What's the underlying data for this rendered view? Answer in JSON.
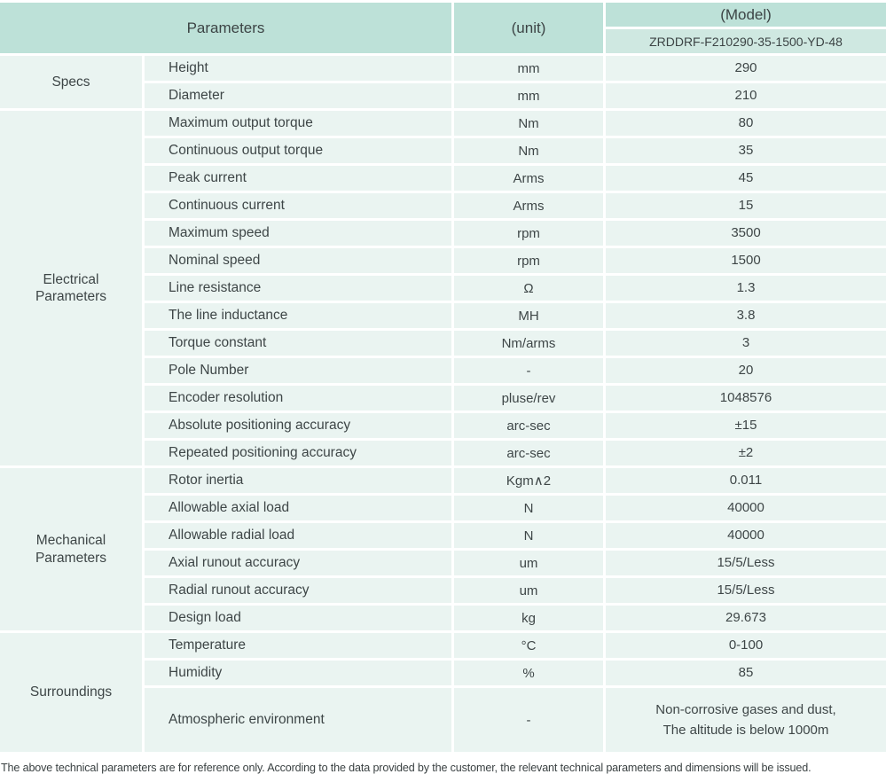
{
  "table": {
    "header": {
      "parameters_label": "Parameters",
      "unit_label": "(unit)",
      "model_label": "(Model)",
      "model_value": "ZRDDRF-F210290-35-1500-YD-48"
    },
    "sections": [
      {
        "name": "Specs",
        "rows": [
          {
            "param": "Height",
            "unit": "mm",
            "value": "290"
          },
          {
            "param": "Diameter",
            "unit": "mm",
            "value": "210"
          }
        ]
      },
      {
        "name": "Electrical\nParameters",
        "rows": [
          {
            "param": "Maximum output torque",
            "unit": "Nm",
            "value": "80"
          },
          {
            "param": "Continuous output torque",
            "unit": "Nm",
            "value": "35"
          },
          {
            "param": "Peak current",
            "unit": "Arms",
            "value": "45"
          },
          {
            "param": "Continuous current",
            "unit": "Arms",
            "value": "15"
          },
          {
            "param": "Maximum speed",
            "unit": "rpm",
            "value": "3500"
          },
          {
            "param": "Nominal speed",
            "unit": "rpm",
            "value": "1500"
          },
          {
            "param": "Line resistance",
            "unit": "Ω",
            "value": "1.3"
          },
          {
            "param": "The line inductance",
            "unit": "MH",
            "value": "3.8"
          },
          {
            "param": "Torque constant",
            "unit": "Nm/arms",
            "value": "3"
          },
          {
            "param": "Pole Number",
            "unit": "-",
            "value": "20"
          },
          {
            "param": "Encoder resolution",
            "unit": "pluse/rev",
            "value": "1048576"
          },
          {
            "param": "Absolute positioning accuracy",
            "unit": "arc-sec",
            "value": "±15"
          },
          {
            "param": "Repeated positioning accuracy",
            "unit": "arc-sec",
            "value": "±2"
          }
        ]
      },
      {
        "name": "Mechanical\nParameters",
        "rows": [
          {
            "param": "Rotor inertia",
            "unit": "Kgm∧2",
            "value": "0.011"
          },
          {
            "param": "Allowable axial load",
            "unit": "N",
            "value": "40000"
          },
          {
            "param": "Allowable radial load",
            "unit": "N",
            "value": "40000"
          },
          {
            "param": "Axial runout accuracy",
            "unit": "um",
            "value": "15/5/Less"
          },
          {
            "param": "Radial runout accuracy",
            "unit": "um",
            "value": "15/5/Less"
          },
          {
            "param": "Design load",
            "unit": "kg",
            "value": "29.673"
          }
        ]
      },
      {
        "name": "Surroundings",
        "rows": [
          {
            "param": "Temperature",
            "unit": "°C",
            "value": "0-100"
          },
          {
            "param": "Humidity",
            "unit": "%",
            "value": "85"
          },
          {
            "param": "Atmospheric environment",
            "unit": "-",
            "value": "Non-corrosive gases and dust,\nThe altitude is below 1000m"
          }
        ]
      }
    ]
  },
  "footer": {
    "note": "The above technical parameters are for reference only. According to the data provided by the customer, the relevant technical parameters and dimensions will be issued."
  },
  "colors": {
    "header_bg": "#bde1d8",
    "subheader_bg": "#cfe8e1",
    "cell_bg": "#eaf4f1",
    "text": "#3e4647"
  }
}
